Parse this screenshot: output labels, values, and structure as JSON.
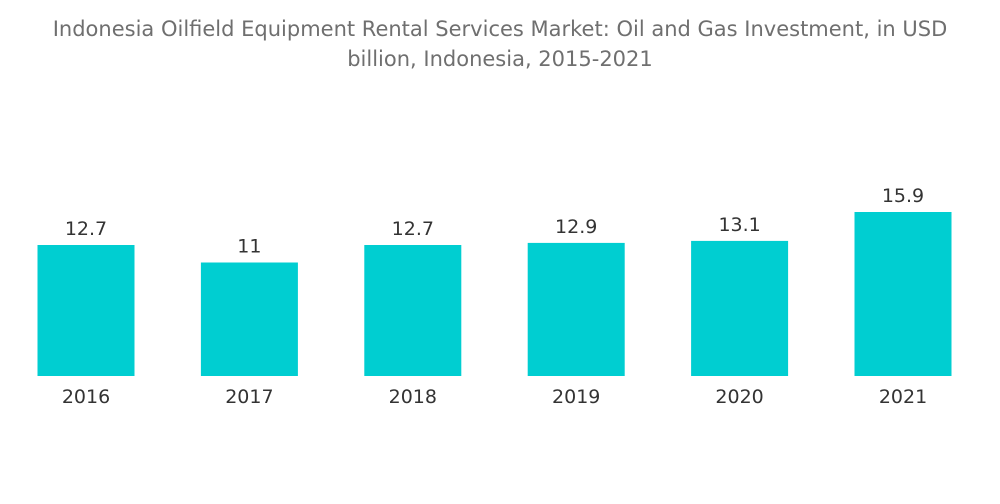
{
  "chart_data": {
    "type": "bar",
    "title_line1": "Indonesia Oilfield Equipment Rental Services Market: Oil and Gas Investment, in USD",
    "title_line2": "billion, Indonesia, 2015-2021",
    "categories": [
      "2016",
      "2017",
      "2018",
      "2019",
      "2020",
      "2021"
    ],
    "values": [
      12.7,
      11,
      12.7,
      12.9,
      13.1,
      15.9
    ],
    "value_labels": [
      "12.7",
      "11",
      "12.7",
      "12.9",
      "13.1",
      "15.9"
    ],
    "xlabel": "",
    "ylabel": "",
    "ylim": [
      0,
      15.9
    ],
    "grid": false,
    "legend": "none",
    "bar_color": "#00ced1"
  }
}
